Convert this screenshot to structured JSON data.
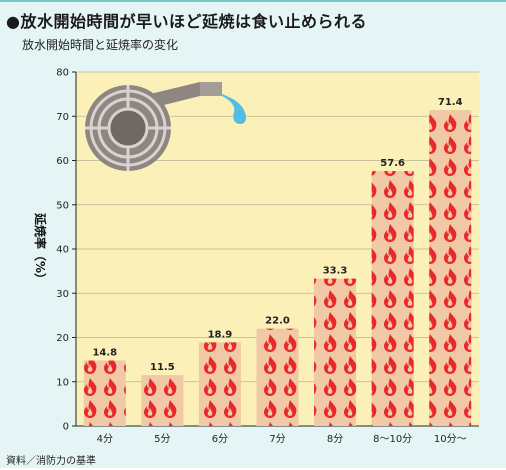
{
  "header": {
    "title": "●放水開始時間が早いほど延焼は食い止められる",
    "subtitle": "放水開始時間と延焼率の変化"
  },
  "footer": {
    "source": "資料／消防力の基準"
  },
  "colors": {
    "plot_background": "#fbf1b8",
    "bar_fill": "#f1c9a7",
    "flame": "#e8282a",
    "hose_gray": "#8f8681",
    "water": "#55bce6",
    "frame_background": "#e5f5f5"
  },
  "chart_data": {
    "type": "bar",
    "categories": [
      "4分",
      "5分",
      "6分",
      "7分",
      "8分",
      "8～10分",
      "10分～"
    ],
    "values": [
      14.8,
      11.5,
      18.9,
      22.0,
      33.3,
      57.6,
      71.4
    ],
    "value_labels": [
      "14.8",
      "11.5",
      "18.9",
      "22.0",
      "33.3",
      "57.6",
      "71.4"
    ],
    "title": "放水開始時間と延焼率の変化",
    "xlabel": "",
    "ylabel": "延焼率（%）",
    "ylim": [
      0,
      80
    ],
    "yticks": [
      0,
      10,
      20,
      30,
      40,
      50,
      60,
      70,
      80
    ],
    "grid": true,
    "decoration": "fire-hose-icon"
  }
}
